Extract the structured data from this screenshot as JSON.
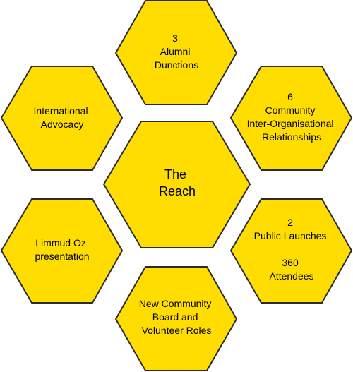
{
  "colors": {
    "hex_fill": "#FFDD00",
    "hex_stroke": "#2B2B2B",
    "text": "#000000"
  },
  "hexagons": [
    {
      "id": "center",
      "lines": [
        "The",
        "Reach"
      ]
    },
    {
      "id": "top",
      "lines": [
        "3",
        "Alumni",
        "Dunctions"
      ]
    },
    {
      "id": "upper-right",
      "lines": [
        "6",
        "Community",
        "Inter-Organisational",
        "Relationships"
      ]
    },
    {
      "id": "lower-right",
      "lines": [
        "2",
        "Public  Launches",
        "",
        "360",
        "Attendees"
      ]
    },
    {
      "id": "bottom",
      "lines": [
        "New Community",
        "Board and",
        "Volunteer Roles"
      ]
    },
    {
      "id": "lower-left",
      "lines": [
        "Limmud Oz",
        "presentation"
      ]
    },
    {
      "id": "upper-left",
      "lines": [
        "International",
        "Advocacy"
      ]
    }
  ]
}
